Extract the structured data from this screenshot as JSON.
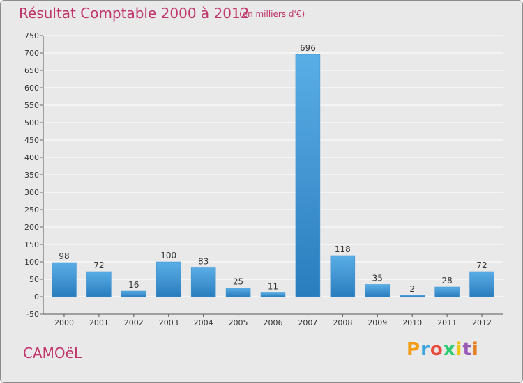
{
  "header": {
    "title": "Résultat Comptable 2000 à 2012",
    "unit": "(en milliers d'€)"
  },
  "footer": {
    "commune": "CAMOëL",
    "logo_text": "Proxiti"
  },
  "colors": {
    "title": "#c0356b",
    "bar_top": "#5aaee6",
    "bar_bottom": "#2a7dbd",
    "background": "#e9e9e9",
    "grid": "#ffffff"
  },
  "chart_data": {
    "type": "bar",
    "title": "Résultat Comptable 2000 à 2012",
    "subtitle": "(en milliers d'€)",
    "categories": [
      "2000",
      "2001",
      "2002",
      "2003",
      "2004",
      "2005",
      "2006",
      "2007",
      "2008",
      "2009",
      "2010",
      "2011",
      "2012"
    ],
    "values": [
      98,
      72,
      16,
      100,
      83,
      25,
      11,
      696,
      118,
      35,
      2,
      28,
      72
    ],
    "ylim": [
      -50,
      750
    ],
    "yticks": [
      -50,
      0,
      50,
      100,
      150,
      200,
      250,
      300,
      350,
      400,
      450,
      500,
      550,
      600,
      650,
      700,
      750
    ],
    "grid": true,
    "legend": "none"
  }
}
